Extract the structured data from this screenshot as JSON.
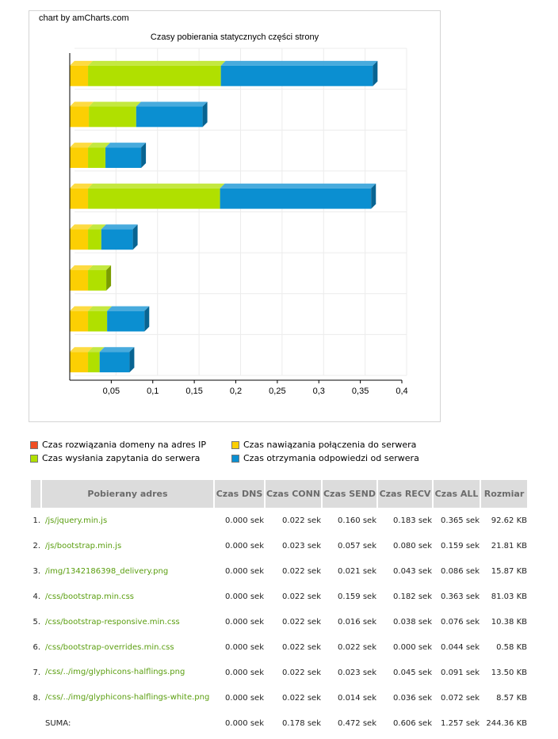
{
  "chart_data": {
    "type": "bar",
    "orientation": "horizontal",
    "stacked": true,
    "credit": "chart by amCharts.com",
    "title": "Czasy pobierania statycznych części strony",
    "xlim": [
      0,
      0.4
    ],
    "x_ticks": [
      "0,05",
      "0,1",
      "0,15",
      "0,2",
      "0,25",
      "0,3",
      "0,35",
      "0,4"
    ],
    "x_tick_values": [
      0.05,
      0.1,
      0.15,
      0.2,
      0.25,
      0.3,
      0.35,
      0.4
    ],
    "grid": true,
    "legend_placement": "bottom",
    "categories": [
      "/js/jquery.min.js",
      "/js/bootstrap.min.js",
      "/img/1342186398_delivery.png",
      "/css/bootstrap.min.css",
      "/css/bootstrap-responsive.min.css",
      "/css/bootstrap-overrides.min.css",
      "/css/../img/glyphicons-halflings.png",
      "/css/../img/glyphicons-halflings-white.png"
    ],
    "series": [
      {
        "name": "Czas rozwiązania domeny na adres IP",
        "color": "#f04e23",
        "values": [
          0,
          0,
          0,
          0,
          0,
          0,
          0,
          0
        ]
      },
      {
        "name": "Czas nawiązania połączenia do serwera",
        "color": "#fccf03",
        "values": [
          0.022,
          0.023,
          0.022,
          0.022,
          0.022,
          0.022,
          0.022,
          0.022
        ]
      },
      {
        "name": "Czas wysłania zapytania do serwera",
        "color": "#b0e000",
        "values": [
          0.16,
          0.057,
          0.021,
          0.159,
          0.016,
          0.022,
          0.023,
          0.014
        ]
      },
      {
        "name": "Czas otrzymania odpowiedzi od serwera",
        "color": "#0b8fd1",
        "values": [
          0.183,
          0.08,
          0.043,
          0.182,
          0.038,
          0.0,
          0.045,
          0.036
        ]
      }
    ]
  },
  "table": {
    "headers": [
      "",
      "Pobierany adres",
      "Czas DNS",
      "Czas CONN",
      "Czas SEND",
      "Czas RECV",
      "Czas ALL",
      "Rozmiar"
    ],
    "rows": [
      {
        "num": "1.",
        "url": "/js/jquery.min.js",
        "dns": "0.000 sek",
        "conn": "0.022 sek",
        "send": "0.160 sek",
        "recv": "0.183 sek",
        "all": "0.365 sek",
        "size": "92.62 KB"
      },
      {
        "num": "2.",
        "url": "/js/bootstrap.min.js",
        "dns": "0.000 sek",
        "conn": "0.023 sek",
        "send": "0.057 sek",
        "recv": "0.080 sek",
        "all": "0.159 sek",
        "size": "21.81 KB"
      },
      {
        "num": "3.",
        "url": "/img/1342186398_delivery.png",
        "dns": "0.000 sek",
        "conn": "0.022 sek",
        "send": "0.021 sek",
        "recv": "0.043 sek",
        "all": "0.086 sek",
        "size": "15.87 KB"
      },
      {
        "num": "4.",
        "url": "/css/bootstrap.min.css",
        "dns": "0.000 sek",
        "conn": "0.022 sek",
        "send": "0.159 sek",
        "recv": "0.182 sek",
        "all": "0.363 sek",
        "size": "81.03 KB"
      },
      {
        "num": "5.",
        "url": "/css/bootstrap-responsive.min.css",
        "dns": "0.000 sek",
        "conn": "0.022 sek",
        "send": "0.016 sek",
        "recv": "0.038 sek",
        "all": "0.076 sek",
        "size": "10.38 KB"
      },
      {
        "num": "6.",
        "url": "/css/bootstrap-overrides.min.css",
        "dns": "0.000 sek",
        "conn": "0.022 sek",
        "send": "0.022 sek",
        "recv": "0.000 sek",
        "all": "0.044 sek",
        "size": "0.58 KB"
      },
      {
        "num": "7.",
        "url": "/css/../img/glyphicons-halflings.png",
        "dns": "0.000 sek",
        "conn": "0.022 sek",
        "send": "0.023 sek",
        "recv": "0.045 sek",
        "all": "0.091 sek",
        "size": "13.50 KB"
      },
      {
        "num": "8.",
        "url": "/css/../img/glyphicons-halflings-white.png",
        "dns": "0.000 sek",
        "conn": "0.022 sek",
        "send": "0.014 sek",
        "recv": "0.036 sek",
        "all": "0.072 sek",
        "size": "8.57 KB"
      }
    ],
    "total": {
      "label": "SUMA:",
      "dns": "0.000 sek",
      "conn": "0.178 sek",
      "send": "0.472 sek",
      "recv": "0.606 sek",
      "all": "1.257 sek",
      "size": "244.36 KB"
    }
  }
}
